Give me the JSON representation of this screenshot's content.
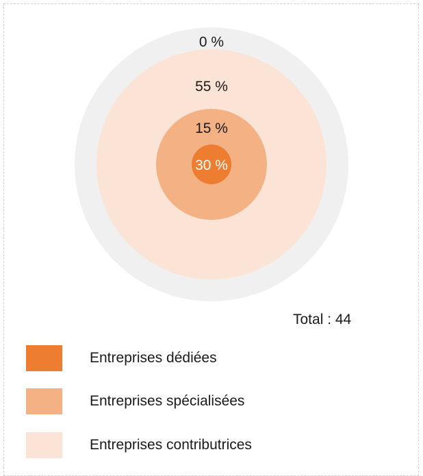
{
  "chart_data": {
    "type": "nested-circles",
    "total_label": "Total : 44",
    "series": [
      {
        "name": "Entreprises contributrices",
        "value_pct": 55,
        "label": "55 %",
        "color": "#fbe4d5"
      },
      {
        "name": "Entreprises spécialisées",
        "value_pct": 15,
        "label": "15 %",
        "color": "#f4b183"
      },
      {
        "name": "Entreprises dédiées",
        "value_pct": 30,
        "label": "30 %",
        "color": "#ed7d31"
      }
    ],
    "outer_ring": {
      "label": "0 %",
      "color": "#f0f0f0"
    }
  },
  "legend": [
    {
      "label": "Entreprises dédiées",
      "color": "#ed7d31"
    },
    {
      "label": "Entreprises spécialisées",
      "color": "#f4b183"
    },
    {
      "label": "Entreprises contributrices",
      "color": "#fbe4d5"
    }
  ]
}
